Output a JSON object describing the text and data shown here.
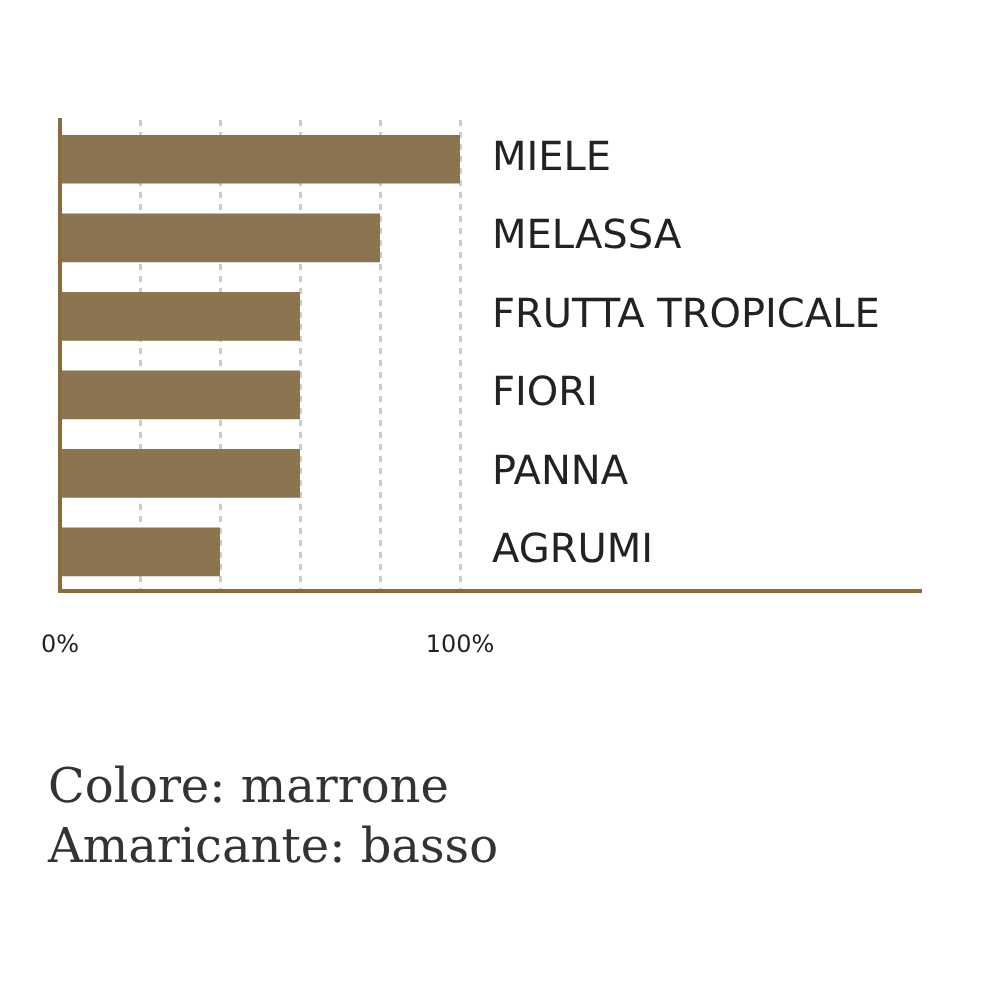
{
  "chart_data": {
    "type": "bar",
    "orientation": "horizontal",
    "categories": [
      "MIELE",
      "MELASSA",
      "FRUTTA TROPICALE",
      "FIORI",
      "PANNA",
      "AGRUMI"
    ],
    "values": [
      100,
      80,
      60,
      60,
      60,
      40
    ],
    "color": "#8b7550",
    "xlim": [
      0,
      215
    ],
    "xticks": [
      {
        "value": 0,
        "label": "0%"
      },
      {
        "value": 20,
        "label": null
      },
      {
        "value": 40,
        "label": null
      },
      {
        "value": 60,
        "label": null
      },
      {
        "value": 80,
        "label": null
      },
      {
        "value": 100,
        "label": "100%"
      }
    ],
    "grid": "x",
    "legend": false,
    "annotations": [
      "Colore: marrone",
      "Amaricante: basso"
    ]
  }
}
